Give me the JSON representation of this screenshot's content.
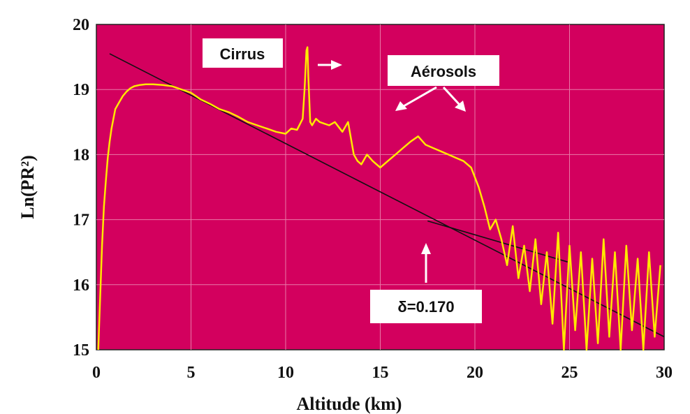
{
  "chart_data": {
    "type": "line",
    "title": "",
    "xlabel": "Altitude (km)",
    "ylabel": "Ln(PR²)",
    "xlim": [
      0,
      30
    ],
    "ylim": [
      15,
      20
    ],
    "xticks": [
      0,
      5,
      10,
      15,
      20,
      25,
      30
    ],
    "yticks": [
      15,
      16,
      17,
      18,
      19,
      20
    ],
    "grid": true,
    "colors": {
      "plot_background": "#d3005e",
      "signal": "#ffe800",
      "fit_line": "#111111",
      "arrow": "#ffffff"
    },
    "series": [
      {
        "x": [
          0.1,
          0.2,
          0.3,
          0.4,
          0.5,
          0.6,
          0.7,
          0.8,
          0.9,
          1.0,
          1.2,
          1.4,
          1.6,
          1.8,
          2.0,
          2.3,
          2.6,
          3.0,
          3.5,
          4.0,
          4.5,
          5.0,
          5.5,
          6.0,
          6.5,
          7.0,
          7.5,
          8.0,
          8.5,
          9.0,
          9.5,
          10.0,
          10.3,
          10.6,
          10.9,
          11.0,
          11.1,
          11.15,
          11.2,
          11.3,
          11.4,
          11.6,
          11.8,
          12.0,
          12.3,
          12.6,
          13.0,
          13.3,
          13.6,
          13.8,
          14.0,
          14.3,
          14.6,
          15.0,
          15.4,
          15.8,
          16.2,
          16.6,
          17.0,
          17.4,
          17.8,
          18.2,
          18.6,
          19.0,
          19.4,
          19.8,
          20.2,
          20.5,
          20.8,
          21.1,
          21.4,
          21.7,
          22.0,
          22.3,
          22.6,
          22.9,
          23.2,
          23.5,
          23.8,
          24.1,
          24.4,
          24.7,
          25.0,
          25.3,
          25.6,
          25.9,
          26.2,
          26.5,
          26.8,
          27.1,
          27.4,
          27.7,
          28.0,
          28.3,
          28.6,
          28.9,
          29.2,
          29.5,
          29.8
        ],
        "y": [
          15.0,
          15.8,
          16.6,
          17.2,
          17.6,
          17.95,
          18.2,
          18.4,
          18.55,
          18.7,
          18.8,
          18.9,
          18.97,
          19.02,
          19.05,
          19.07,
          19.08,
          19.08,
          19.07,
          19.05,
          19.0,
          18.95,
          18.85,
          18.78,
          18.7,
          18.65,
          18.58,
          18.5,
          18.45,
          18.4,
          18.35,
          18.32,
          18.4,
          18.38,
          18.55,
          19.0,
          19.6,
          19.65,
          19.2,
          18.5,
          18.45,
          18.55,
          18.5,
          18.48,
          18.45,
          18.5,
          18.35,
          18.5,
          18.0,
          17.9,
          17.85,
          18.0,
          17.9,
          17.8,
          17.9,
          18.0,
          18.1,
          18.2,
          18.28,
          18.15,
          18.1,
          18.05,
          18.0,
          17.95,
          17.9,
          17.8,
          17.5,
          17.2,
          16.85,
          17.0,
          16.7,
          16.3,
          16.9,
          16.1,
          16.6,
          15.9,
          16.7,
          15.7,
          16.5,
          15.4,
          16.8,
          15.0,
          16.6,
          15.3,
          16.5,
          15.0,
          16.4,
          15.1,
          16.7,
          15.2,
          16.5,
          15.0,
          16.6,
          15.3,
          16.4,
          15.0,
          16.5,
          15.2,
          16.3
        ]
      }
    ],
    "fit_lines": [
      {
        "x": [
          0.7,
          30.0
        ],
        "y": [
          19.55,
          15.2
        ]
      },
      {
        "x": [
          17.5,
          24.9
        ],
        "y": [
          16.98,
          16.35
        ]
      }
    ],
    "annotations": [
      {
        "text": "Cirrus"
      },
      {
        "text": "Aérosols"
      },
      {
        "text": "δ=0.170"
      }
    ]
  }
}
